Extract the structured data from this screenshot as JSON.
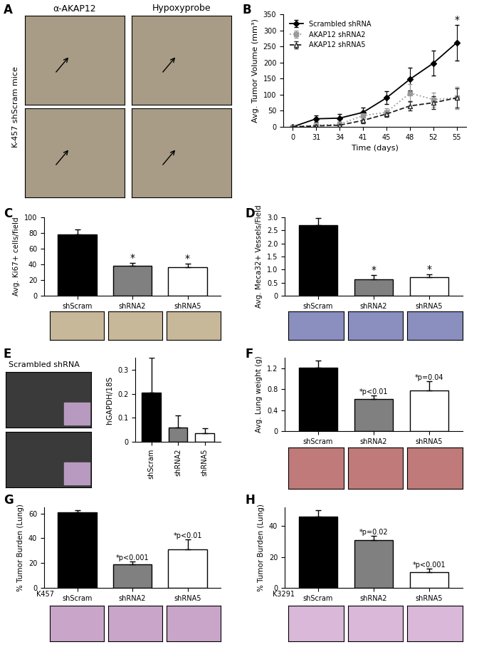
{
  "panel_A": {
    "panel_label": "A",
    "column_labels": [
      "α-AKAP12",
      "Hypoxyprobe"
    ],
    "row_label": "K-457 shScram mice"
  },
  "chart_data": [
    {
      "panel_label": "B",
      "type": "line",
      "categories": [
        "0",
        "31",
        "34",
        "41",
        "45",
        "48",
        "52",
        "55"
      ],
      "x_label": "Time (days)",
      "y_label": "Avg. Tumor Volume (mm³)",
      "ylim": [
        0,
        350
      ],
      "yticks": [
        0,
        50,
        100,
        150,
        200,
        250,
        300,
        350
      ],
      "grid": false,
      "legend": "upper left",
      "series": [
        {
          "name": "Scrambled shRNA",
          "color": "#000000",
          "marker": "diamond",
          "line_style": "solid",
          "values": [
            0,
            25,
            27,
            45,
            90,
            148,
            198,
            262
          ],
          "errors": [
            0,
            10,
            12,
            15,
            20,
            35,
            38,
            55
          ]
        },
        {
          "name": "AKAP12 shRNA2",
          "color": "#999999",
          "marker": "square",
          "line_style": "dotted",
          "values": [
            0,
            5,
            8,
            35,
            45,
            105,
            85,
            90
          ],
          "errors": [
            0,
            4,
            5,
            10,
            12,
            28,
            22,
            35
          ]
        },
        {
          "name": "AKAP12 shRNA5",
          "color": "#222222",
          "marker": "open triangle",
          "line_style": "dashed",
          "values": [
            0,
            3,
            5,
            20,
            40,
            65,
            75,
            90
          ],
          "errors": [
            0,
            3,
            4,
            8,
            10,
            15,
            20,
            30
          ]
        }
      ],
      "annotations": [
        {
          "text": "*",
          "category": "55"
        }
      ]
    },
    {
      "panel_label": "C",
      "type": "bar",
      "categories": [
        "shScram",
        "shRNA2",
        "shRNA5"
      ],
      "y_label": "Avg. Ki67+ cells/field",
      "values": [
        78,
        38,
        36
      ],
      "errors": [
        7,
        4,
        5
      ],
      "colors": [
        "#000000",
        "#808080",
        "#ffffff"
      ],
      "ylim": [
        0,
        100
      ],
      "yticks": [
        0,
        20,
        40,
        60,
        80,
        100
      ],
      "grid": false,
      "annotations": [
        null,
        "*",
        "*"
      ]
    },
    {
      "panel_label": "D",
      "type": "bar",
      "categories": [
        "shScram",
        "shRNA2",
        "shRNA5"
      ],
      "y_label": "Avg. Meca32+ Vessels/Field",
      "values": [
        2.7,
        0.63,
        0.7
      ],
      "errors": [
        0.28,
        0.15,
        0.12
      ],
      "colors": [
        "#000000",
        "#808080",
        "#ffffff"
      ],
      "ylim": [
        0,
        3
      ],
      "yticks": [
        0,
        0.5,
        {
          "value": 1,
          "label": "1.0"
        },
        1.5,
        {
          "value": 2,
          "label": "2.0"
        },
        2.5,
        {
          "value": 3,
          "label": "3.0"
        }
      ],
      "grid": false,
      "annotations": [
        null,
        "*",
        "*"
      ]
    },
    {
      "panel_label": "E",
      "type": "bar",
      "image_label": "Scrambled shRNA",
      "categories": [
        "shScram",
        "shRNA2",
        "shRNA5"
      ],
      "y_label": "hGAPDH/18S",
      "values": [
        0.205,
        0.06,
        0.035
      ],
      "errors": [
        0.145,
        0.05,
        0.022
      ],
      "colors": [
        "#000000",
        "#808080",
        "#ffffff"
      ],
      "ylim": [
        0,
        0.35
      ],
      "yticks": [
        0,
        0.1,
        0.2,
        0.3
      ],
      "grid": false
    },
    {
      "panel_label": "F",
      "type": "bar",
      "categories": [
        "shScram",
        "shRNA2",
        "shRNA5"
      ],
      "y_label": "Avg. Lung weight (g)",
      "values": [
        1.21,
        0.61,
        0.78
      ],
      "errors": [
        0.13,
        0.07,
        0.17
      ],
      "colors": [
        "#000000",
        "#808080",
        "#ffffff"
      ],
      "ylim": [
        0,
        1.4
      ],
      "yticks": [
        0,
        0.4,
        0.8,
        1.2
      ],
      "grid": false,
      "annotations": [
        null,
        "*p<0.01",
        "*p=0.04"
      ]
    },
    {
      "panel_label": "G",
      "type": "bar",
      "cell_line": "K457",
      "categories": [
        "shScram",
        "shRNA2",
        "shRNA5"
      ],
      "y_label": "% Tumor Burden (Lung)",
      "values": [
        61,
        19,
        31
      ],
      "errors": [
        1.5,
        2.5,
        8
      ],
      "colors": [
        "#000000",
        "#808080",
        "#ffffff"
      ],
      "ylim": [
        0,
        65
      ],
      "yticks": [
        0,
        20,
        40,
        60
      ],
      "grid": false,
      "annotations": [
        null,
        "*p<0.001",
        "*p<0.01"
      ]
    },
    {
      "panel_label": "H",
      "type": "bar",
      "cell_line": "K3291",
      "categories": [
        "shScram",
        "shRNA2",
        "shRNA5"
      ],
      "y_label": "% Tumor Burden (Lung)",
      "values": [
        46,
        31,
        10
      ],
      "errors": [
        4,
        2.5,
        2.5
      ],
      "colors": [
        "#000000",
        "#808080",
        "#ffffff"
      ],
      "ylim": [
        0,
        52
      ],
      "yticks": [
        0,
        20,
        40
      ],
      "grid": false,
      "annotations": [
        null,
        "*p=0.02",
        "*p<0.001"
      ]
    }
  ]
}
